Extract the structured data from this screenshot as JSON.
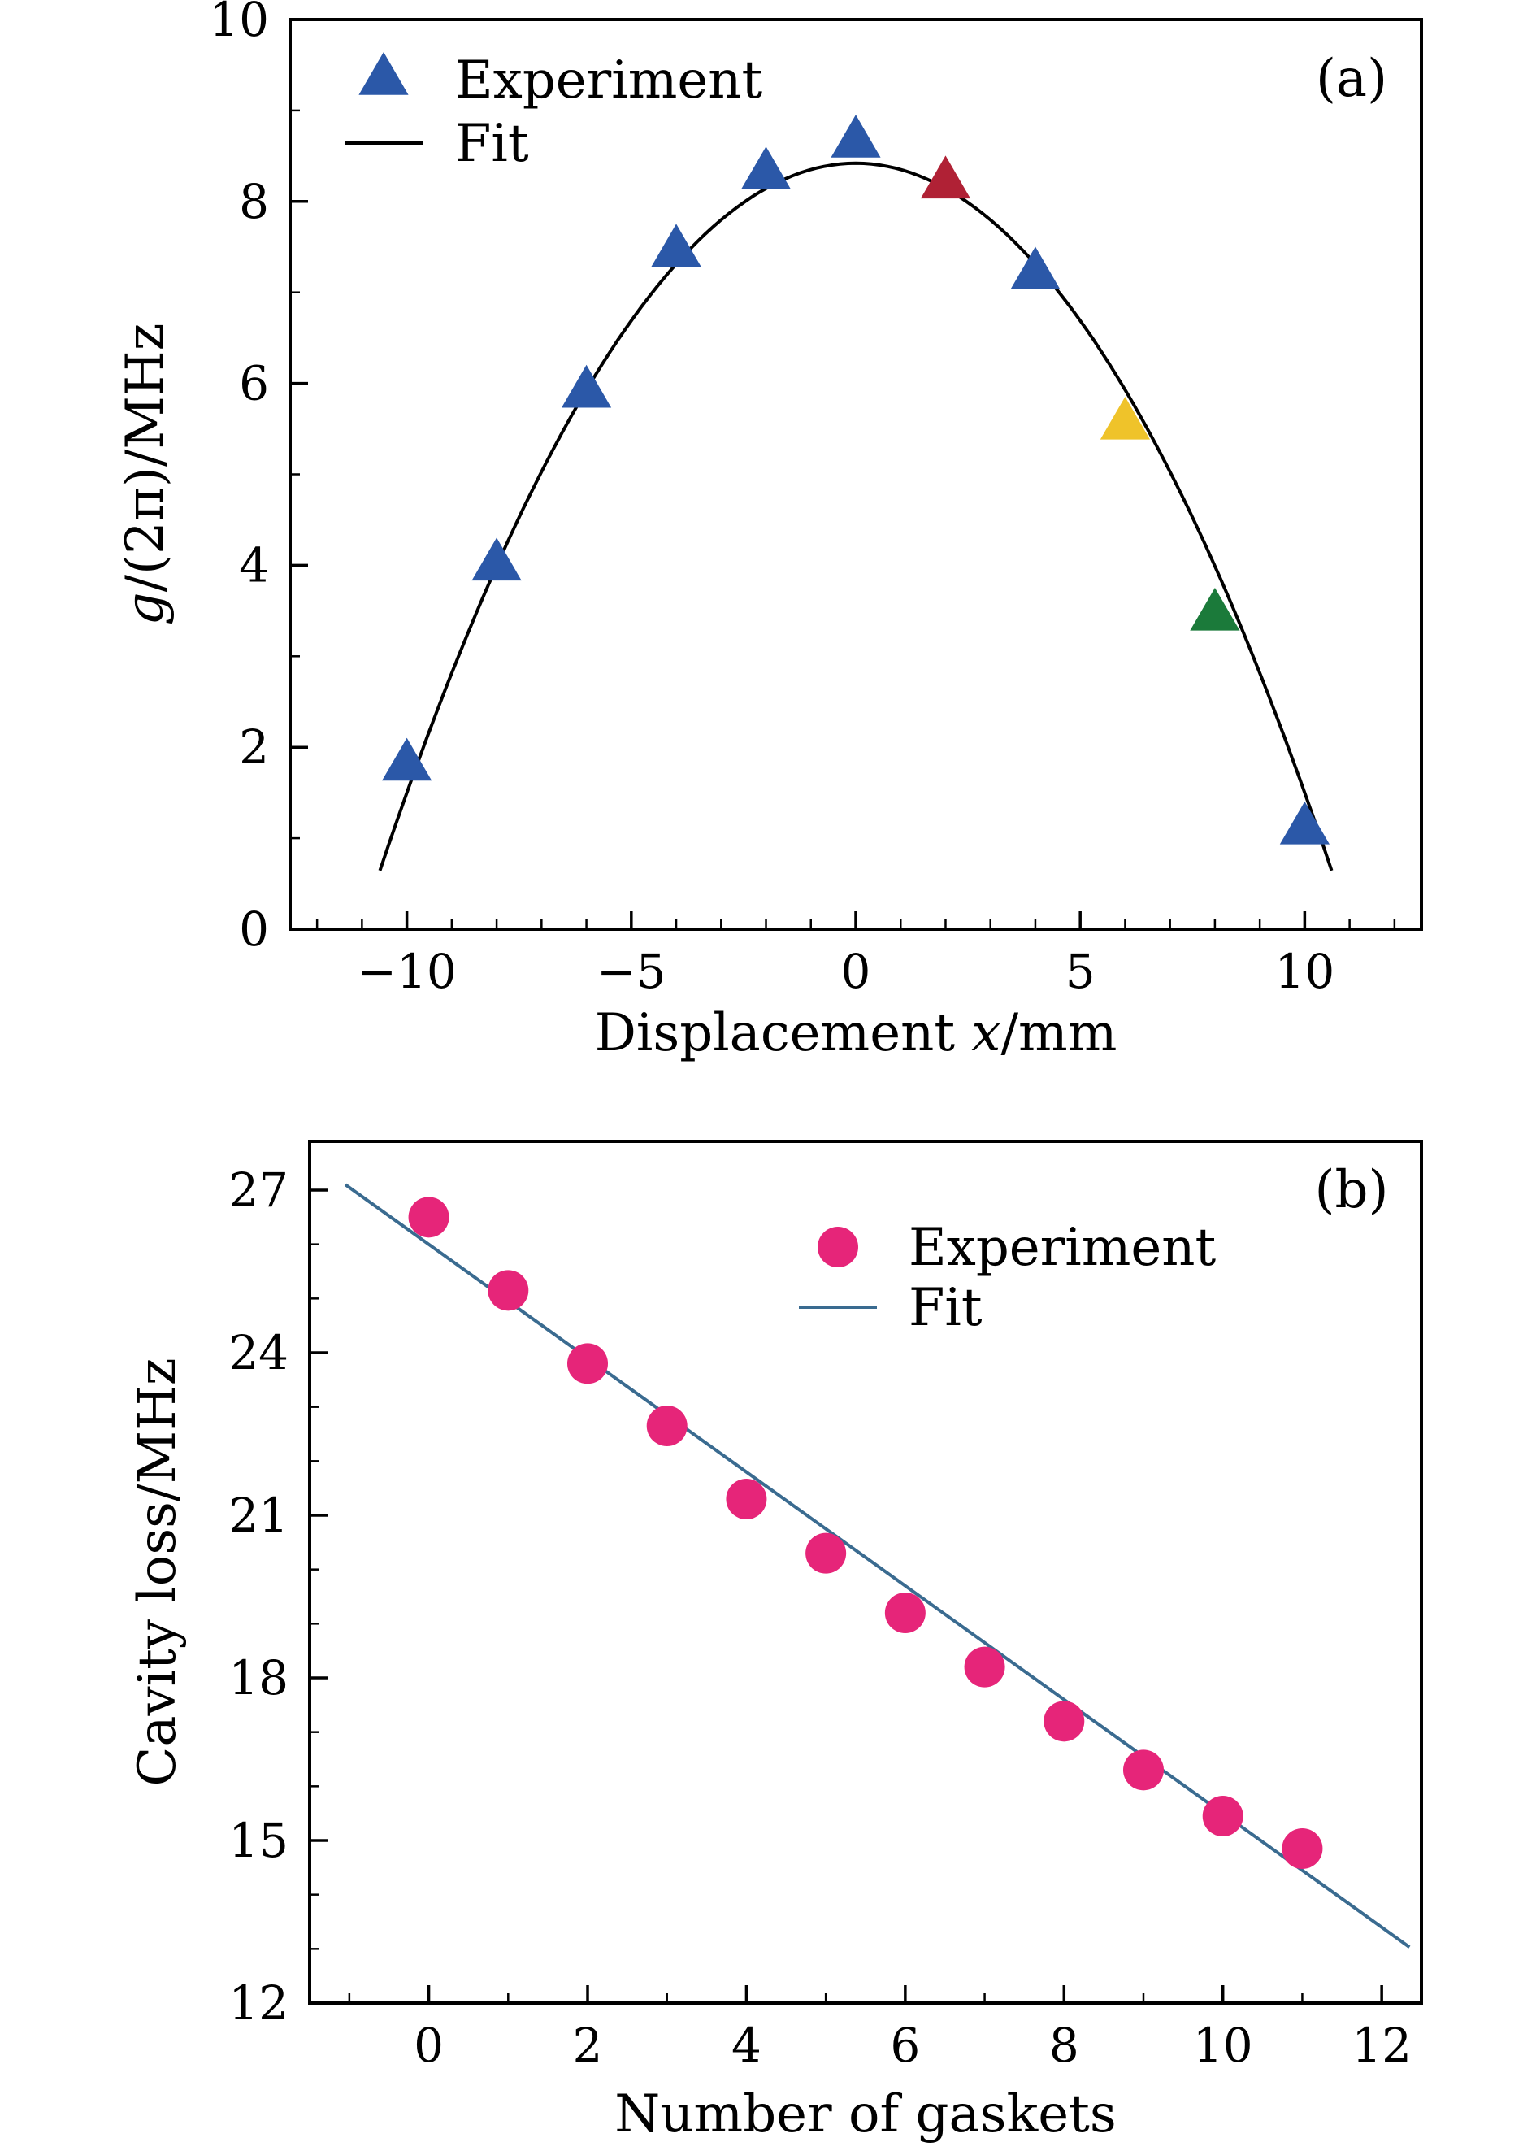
{
  "figure": {
    "background": "#ffffff"
  },
  "chart_data": [
    {
      "type": "scatter",
      "panel_label": "(a)",
      "marker_type": "triangle",
      "xlabel_parts": [
        {
          "t": "Displacement ",
          "i": false
        },
        {
          "t": "x",
          "i": true
        },
        {
          "t": "/mm",
          "i": false
        }
      ],
      "ylabel_parts": [
        {
          "t": "g",
          "i": true
        },
        {
          "t": "/(2π)/MHz",
          "i": false
        }
      ],
      "xlim": [
        -12.6,
        12.6
      ],
      "ylim": [
        0,
        10
      ],
      "xticks": [
        {
          "v": -10,
          "label": "−10"
        },
        {
          "v": -5,
          "label": "−5"
        },
        {
          "v": 0,
          "label": "0"
        },
        {
          "v": 5,
          "label": "5"
        },
        {
          "v": 10,
          "label": "10"
        }
      ],
      "yticks": [
        {
          "v": 0,
          "label": "0"
        },
        {
          "v": 2,
          "label": "2"
        },
        {
          "v": 4,
          "label": "4"
        },
        {
          "v": 6,
          "label": "6"
        },
        {
          "v": 8,
          "label": "8"
        },
        {
          "v": 10,
          "label": "10"
        }
      ],
      "xminor": [
        -12,
        -11,
        -9,
        -8,
        -7,
        -6,
        -4,
        -3,
        -2,
        -1,
        1,
        2,
        3,
        4,
        6,
        7,
        8,
        9,
        11,
        12
      ],
      "yminor": [
        1,
        3,
        5,
        7,
        9
      ],
      "points": [
        {
          "x": -10,
          "y": 1.8,
          "color": "#2b58a8"
        },
        {
          "x": -8,
          "y": 4.0,
          "color": "#2b58a8"
        },
        {
          "x": -6,
          "y": 5.9,
          "color": "#2b58a8"
        },
        {
          "x": -4,
          "y": 7.45,
          "color": "#2b58a8"
        },
        {
          "x": -2,
          "y": 8.3,
          "color": "#2b58a8"
        },
        {
          "x": 0,
          "y": 8.65,
          "color": "#2b58a8"
        },
        {
          "x": 2,
          "y": 8.2,
          "color": "#b02135"
        },
        {
          "x": 4,
          "y": 7.2,
          "color": "#2b58a8"
        },
        {
          "x": 6,
          "y": 5.55,
          "color": "#efc32a"
        },
        {
          "x": 8,
          "y": 3.45,
          "color": "#1b7a3a"
        },
        {
          "x": 10,
          "y": 1.1,
          "color": "#2b58a8"
        }
      ],
      "fit": {
        "type": "parabola",
        "vertex": [
          0,
          8.42
        ],
        "a": -0.0692,
        "x_range": [
          -10.6,
          10.6
        ],
        "color": "#000000"
      },
      "legend": {
        "items": [
          {
            "marker": "triangle",
            "color": "#2b58a8",
            "label": "Experiment"
          },
          {
            "marker": "line",
            "color": "#000000",
            "label": "Fit"
          }
        ]
      }
    },
    {
      "type": "scatter",
      "panel_label": "(b)",
      "marker_type": "circle",
      "xlabel_parts": [
        {
          "t": "Number of gaskets",
          "i": false
        }
      ],
      "ylabel_parts": [
        {
          "t": "Cavity loss/MHz",
          "i": false
        }
      ],
      "xlim": [
        -1.5,
        12.5
      ],
      "ylim": [
        12,
        27.9
      ],
      "xticks": [
        {
          "v": 0,
          "label": "0"
        },
        {
          "v": 2,
          "label": "2"
        },
        {
          "v": 4,
          "label": "4"
        },
        {
          "v": 6,
          "label": "6"
        },
        {
          "v": 8,
          "label": "8"
        },
        {
          "v": 10,
          "label": "10"
        },
        {
          "v": 12,
          "label": "12"
        }
      ],
      "yticks": [
        {
          "v": 12,
          "label": "12"
        },
        {
          "v": 15,
          "label": "15"
        },
        {
          "v": 18,
          "label": "18"
        },
        {
          "v": 21,
          "label": "21"
        },
        {
          "v": 24,
          "label": "24"
        },
        {
          "v": 27,
          "label": "27"
        }
      ],
      "xminor": [
        -1,
        1,
        3,
        5,
        7,
        9,
        11
      ],
      "yminor": [
        13,
        14,
        16,
        17,
        19,
        20,
        22,
        23,
        25,
        26
      ],
      "points": [
        {
          "x": 0,
          "y": 26.5,
          "color": "#e62579"
        },
        {
          "x": 1,
          "y": 25.15,
          "color": "#e62579"
        },
        {
          "x": 2,
          "y": 23.8,
          "color": "#e62579"
        },
        {
          "x": 3,
          "y": 22.65,
          "color": "#e62579"
        },
        {
          "x": 4,
          "y": 21.3,
          "color": "#e62579"
        },
        {
          "x": 5,
          "y": 20.3,
          "color": "#e62579"
        },
        {
          "x": 6,
          "y": 19.2,
          "color": "#e62579"
        },
        {
          "x": 7,
          "y": 18.2,
          "color": "#e62579"
        },
        {
          "x": 8,
          "y": 17.2,
          "color": "#e62579"
        },
        {
          "x": 9,
          "y": 16.3,
          "color": "#e62579"
        },
        {
          "x": 10,
          "y": 15.45,
          "color": "#e62579"
        },
        {
          "x": 11,
          "y": 14.85,
          "color": "#e62579"
        }
      ],
      "fit": {
        "type": "line",
        "slope": -1.05,
        "intercept": 26.0,
        "x_range": [
          -1.05,
          12.35
        ],
        "color": "#3a6b90"
      },
      "legend": {
        "items": [
          {
            "marker": "circle",
            "color": "#e62579",
            "label": "Experiment"
          },
          {
            "marker": "line",
            "color": "#3a6b90",
            "label": "Fit"
          }
        ]
      }
    }
  ]
}
